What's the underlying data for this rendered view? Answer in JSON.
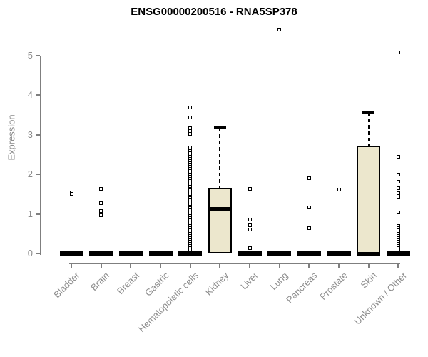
{
  "chart_data": {
    "type": "boxplot",
    "title": "ENSG00000200516 - RNA5SP378",
    "ylabel": "Expression",
    "ylim": [
      0,
      5
    ],
    "yticks": [
      0,
      1,
      2,
      3,
      4,
      5
    ],
    "grid": false,
    "box_fill": "#ECE7CD",
    "axis_color": "#7f7f7f",
    "label_color": "#8c8c8c",
    "categories": [
      "Bladder",
      "Brain",
      "Breast",
      "Gastric",
      "Hematopoietic cells",
      "Kidney",
      "Liver",
      "Lung",
      "Pancreas",
      "Prostate",
      "Skin",
      "Unknown / Other"
    ],
    "series": [
      {
        "category": "Bladder",
        "q1": 0,
        "median": 0,
        "q3": 0,
        "whisker_low": 0,
        "whisker_high": 0,
        "outliers": [
          1.55,
          1.5
        ]
      },
      {
        "category": "Brain",
        "q1": 0,
        "median": 0,
        "q3": 0,
        "whisker_low": 0,
        "whisker_high": 0,
        "outliers": [
          1.64,
          1.27,
          1.08,
          0.96
        ]
      },
      {
        "category": "Breast",
        "q1": 0,
        "median": 0,
        "q3": 0,
        "whisker_low": 0,
        "whisker_high": 0,
        "outliers": []
      },
      {
        "category": "Gastric",
        "q1": 0,
        "median": 0,
        "q3": 0,
        "whisker_low": 0,
        "whisker_high": 0,
        "outliers": []
      },
      {
        "category": "Hematopoietic cells",
        "q1": 0,
        "median": 0,
        "q3": 0,
        "whisker_low": 0,
        "whisker_high": 0,
        "outliers": [
          3.7,
          3.43,
          3.17,
          3.1,
          3.03,
          2.68,
          2.59,
          2.54,
          2.49,
          2.44,
          2.39,
          2.34,
          2.29,
          2.24,
          2.19,
          2.14,
          2.09,
          2.04,
          1.99,
          1.94,
          1.89,
          1.84,
          1.79,
          1.74,
          1.69,
          1.64,
          1.59,
          1.54,
          1.49,
          1.44,
          1.39,
          1.34,
          1.29,
          1.24,
          1.19,
          1.14,
          1.09,
          1.04,
          0.99,
          0.94,
          0.89,
          0.84,
          0.79,
          0.74,
          0.69,
          0.64,
          0.59,
          0.54,
          0.49,
          0.44,
          0.39,
          0.34,
          0.29,
          0.24,
          0.19,
          0.14,
          0.1
        ]
      },
      {
        "category": "Kidney",
        "q1": 0,
        "median": 1.12,
        "q3": 1.66,
        "whisker_low": 0,
        "whisker_high": 3.18,
        "outliers": []
      },
      {
        "category": "Liver",
        "q1": 0,
        "median": 0,
        "q3": 0,
        "whisker_low": 0,
        "whisker_high": 0,
        "outliers": [
          1.64,
          0.86,
          0.72,
          0.61,
          0.14
        ]
      },
      {
        "category": "Lung",
        "q1": 0,
        "median": 0,
        "q3": 0,
        "whisker_low": 0,
        "whisker_high": 0,
        "outliers": [
          5.65
        ]
      },
      {
        "category": "Pancreas",
        "q1": 0,
        "median": 0,
        "q3": 0,
        "whisker_low": 0,
        "whisker_high": 0,
        "outliers": [
          1.9,
          1.16,
          0.64
        ]
      },
      {
        "category": "Prostate",
        "q1": 0,
        "median": 0,
        "q3": 0,
        "whisker_low": 0,
        "whisker_high": 0,
        "outliers": [
          1.61
        ]
      },
      {
        "category": "Skin",
        "q1": 0,
        "median": 0,
        "q3": 2.72,
        "whisker_low": 0,
        "whisker_high": 3.57,
        "outliers": []
      },
      {
        "category": "Unknown / Other",
        "q1": 0,
        "median": 0,
        "q3": 0,
        "whisker_low": 0,
        "whisker_high": 0,
        "outliers": [
          5.08,
          2.45,
          1.99,
          1.82,
          1.65,
          1.52,
          1.46,
          1.41,
          1.04,
          0.69,
          0.64,
          0.59,
          0.54,
          0.49,
          0.44,
          0.39,
          0.34,
          0.29,
          0.24,
          0.19,
          0.14,
          0.1
        ]
      }
    ]
  }
}
